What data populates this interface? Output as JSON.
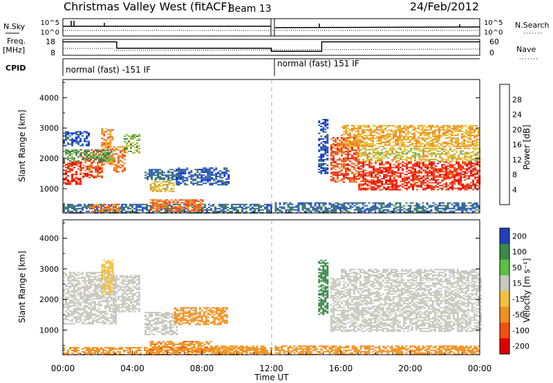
{
  "header": {
    "station": "Christmas Valley West (fitACF)",
    "beam": "Beam 13",
    "date": "24/Feb/2012"
  },
  "summary_panels": {
    "nsky": {
      "label": "N.Sky",
      "ticks": [
        "10^5",
        "10^0"
      ]
    },
    "nsearch": {
      "label": "N.Search",
      "ticks": [
        "10^5",
        "10^0"
      ]
    },
    "freq": {
      "label_line1": "Freq.",
      "label_line2": "[MHz]",
      "ticks": [
        "18",
        "8"
      ]
    },
    "nave": {
      "label": "Nave",
      "ticks": [
        "60",
        "0"
      ]
    },
    "cpid": {
      "label": "CPID",
      "segments": [
        {
          "start_hour": 0,
          "end_hour": 12,
          "text": "normal (fast) -151 IF"
        },
        {
          "start_hour": 12,
          "end_hour": 24,
          "text": "normal (fast) 151 IF"
        }
      ]
    }
  },
  "axes": {
    "x_ticks": [
      "00:00",
      "04:00",
      "08:00",
      "12:00",
      "16:00",
      "20:00",
      "00:00"
    ],
    "x_label": "Time UT",
    "y_label": "Slant Range [km]",
    "y_ticks": [
      "1000",
      "2000",
      "3000",
      "4000"
    ]
  },
  "colorbars": {
    "power": {
      "title": "Power [dB]",
      "ticks": [
        "4",
        "8",
        "12",
        "16",
        "20",
        "24",
        "28"
      ],
      "colors": [
        "#0022ee",
        "#2a55c0",
        "#3c7a5a",
        "#7ab84a",
        "#e8c030",
        "#f08a20",
        "#f04a10",
        "#e80808"
      ]
    },
    "velocity": {
      "title": "Velocity [m s⁻¹]",
      "ticks": [
        "200",
        "100",
        "50",
        "15",
        "-15",
        "-50",
        "-100",
        "-200"
      ],
      "colors": [
        "#2040b8",
        "#3a8a48",
        "#5cc040",
        "#c8c8c0",
        "#f0c040",
        "#f09020",
        "#f05010",
        "#e00000"
      ]
    }
  },
  "chart_data": [
    {
      "type": "heatmap",
      "quantity": "Power",
      "unit": "dB",
      "x_unit": "hour UT",
      "y_unit": "km",
      "xlim": [
        0,
        24
      ],
      "ylim": [
        200,
        4600
      ],
      "colorbar_ticks": [
        4,
        8,
        12,
        16,
        20,
        24,
        28
      ],
      "regions": [
        {
          "t0": 0.0,
          "t1": 1.0,
          "r0": 1150,
          "r1": 1900,
          "value": 28
        },
        {
          "t0": 1.0,
          "t1": 2.2,
          "r0": 1350,
          "r1": 2300,
          "value": 26
        },
        {
          "t0": 2.2,
          "t1": 2.8,
          "r0": 1800,
          "r1": 3000,
          "value": 22
        },
        {
          "t0": 0.0,
          "t1": 2.8,
          "r0": 1900,
          "r1": 2300,
          "value": 12
        },
        {
          "t0": 0.0,
          "t1": 1.5,
          "r0": 2400,
          "r1": 2900,
          "value": 6
        },
        {
          "t0": 2.9,
          "t1": 3.5,
          "r0": 1550,
          "r1": 2400,
          "value": 24
        },
        {
          "t0": 3.5,
          "t1": 4.4,
          "r0": 2200,
          "r1": 2800,
          "value": 14
        },
        {
          "t0": 5.0,
          "t1": 6.4,
          "r0": 900,
          "r1": 1300,
          "value": 18
        },
        {
          "t0": 4.7,
          "t1": 6.8,
          "r0": 1300,
          "r1": 1650,
          "value": 8
        },
        {
          "t0": 6.5,
          "t1": 9.5,
          "r0": 1150,
          "r1": 1700,
          "value": 6
        },
        {
          "t0": 0.0,
          "t1": 12.0,
          "r0": 200,
          "r1": 500,
          "value": 8
        },
        {
          "t0": 1.5,
          "t1": 3.2,
          "r0": 250,
          "r1": 500,
          "value": 22
        },
        {
          "t0": 5.0,
          "t1": 8.0,
          "r0": 250,
          "r1": 650,
          "value": 24
        },
        {
          "t0": 12.2,
          "t1": 24.0,
          "r0": 200,
          "r1": 550,
          "value": 8
        },
        {
          "t0": 14.7,
          "t1": 15.2,
          "r0": 1500,
          "r1": 3300,
          "value": 6
        },
        {
          "t0": 15.4,
          "t1": 17.0,
          "r0": 1200,
          "r1": 2700,
          "value": 26
        },
        {
          "t0": 17.0,
          "t1": 24.0,
          "r0": 950,
          "r1": 1900,
          "value": 28
        },
        {
          "t0": 17.0,
          "t1": 24.0,
          "r0": 1900,
          "r1": 2350,
          "value": 18
        },
        {
          "t0": 16.0,
          "t1": 24.0,
          "r0": 2400,
          "r1": 3100,
          "value": 20
        }
      ]
    },
    {
      "type": "heatmap",
      "quantity": "Velocity",
      "unit": "m s-1",
      "x_unit": "hour UT",
      "y_unit": "km",
      "xlim": [
        0,
        24
      ],
      "ylim": [
        200,
        4600
      ],
      "colorbar_ticks": [
        200,
        100,
        50,
        15,
        -15,
        -50,
        -100,
        -200
      ],
      "regions": [
        {
          "t0": 0.0,
          "t1": 3.0,
          "r0": 1200,
          "r1": 2900,
          "value": 0
        },
        {
          "t0": 2.2,
          "t1": 2.9,
          "r0": 2200,
          "r1": 3300,
          "value": -30
        },
        {
          "t0": 2.9,
          "t1": 4.4,
          "r0": 1600,
          "r1": 2800,
          "value": 0
        },
        {
          "t0": 4.7,
          "t1": 6.6,
          "r0": 850,
          "r1": 1600,
          "value": 0
        },
        {
          "t0": 6.4,
          "t1": 9.5,
          "r0": 1200,
          "r1": 1750,
          "value": -70
        },
        {
          "t0": 0.0,
          "t1": 12.0,
          "r0": 200,
          "r1": 450,
          "value": -70
        },
        {
          "t0": 5.0,
          "t1": 8.5,
          "r0": 250,
          "r1": 650,
          "value": -90
        },
        {
          "t0": 8.5,
          "t1": 11.5,
          "r0": 250,
          "r1": 500,
          "value": -60
        },
        {
          "t0": 12.2,
          "t1": 24.0,
          "r0": 200,
          "r1": 500,
          "value": -80
        },
        {
          "t0": 14.7,
          "t1": 15.2,
          "r0": 1500,
          "r1": 3300,
          "value": 80
        },
        {
          "t0": 15.4,
          "t1": 24.0,
          "r0": 950,
          "r1": 2700,
          "value": 0
        },
        {
          "t0": 16.0,
          "t1": 24.0,
          "r0": 2700,
          "r1": 3000,
          "value": 0
        }
      ]
    },
    {
      "type": "line",
      "quantity": "Frequency",
      "unit": "MHz",
      "x_unit": "hour UT",
      "ylim": [
        8,
        18
      ],
      "points": [
        [
          0,
          16.5
        ],
        [
          3.1,
          16.5
        ],
        [
          3.1,
          12.5
        ],
        [
          12,
          12.5
        ],
        [
          12,
          10.5
        ],
        [
          14.9,
          10.5
        ],
        [
          14.9,
          16.5
        ],
        [
          24,
          16.5
        ]
      ]
    }
  ]
}
